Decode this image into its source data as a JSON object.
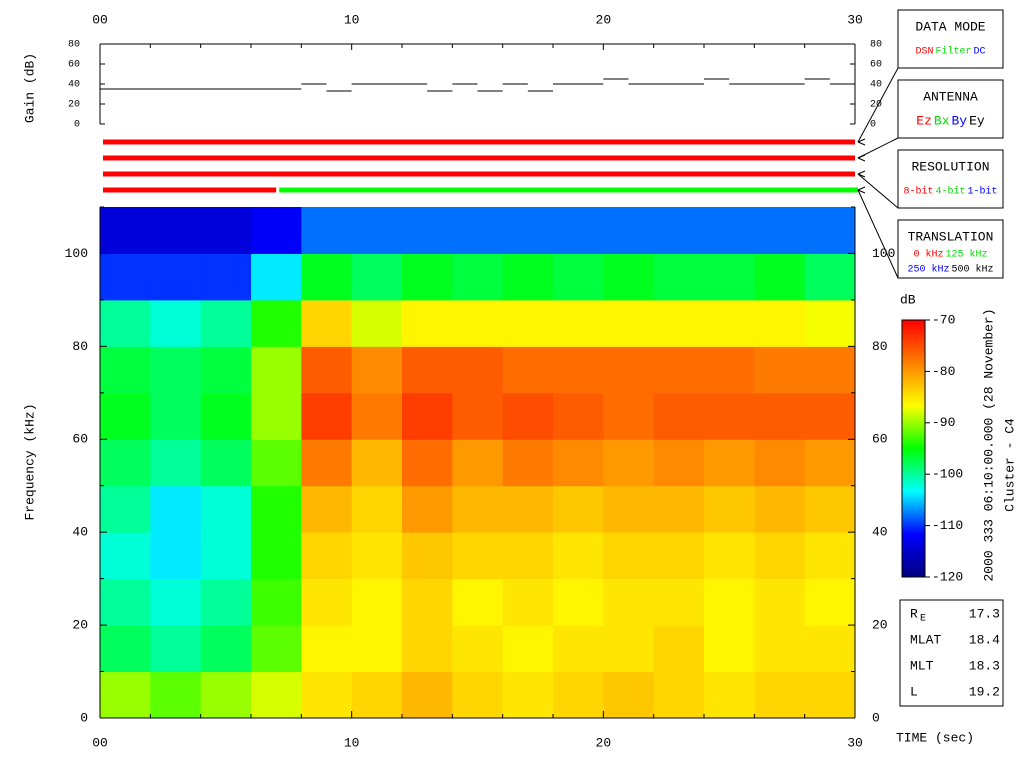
{
  "chart_data": [
    {
      "type": "step",
      "ylabel": "Gain (dB)",
      "color": "#000000",
      "xlim": [
        0,
        30
      ],
      "xticks": [
        {
          "value": 0,
          "label": "00"
        },
        10,
        20,
        30
      ],
      "xminorticks": [
        2,
        4,
        6,
        8,
        12,
        14,
        16,
        18,
        22,
        24,
        26,
        28
      ],
      "ylim": [
        0,
        80
      ],
      "yticks": [
        0,
        20,
        40,
        60,
        80
      ],
      "x": [
        0,
        8,
        9,
        10,
        13,
        14,
        15,
        16,
        17,
        18,
        20,
        21,
        24,
        25,
        28,
        29
      ],
      "values": [
        35,
        40,
        33,
        40,
        33,
        40,
        33,
        40,
        33,
        40,
        45,
        40,
        45,
        40,
        45,
        40
      ]
    },
    {
      "type": "heatmap",
      "ylabel": "Frequency (kHz)",
      "xlabel": "TIME (sec)",
      "xlim": [
        0,
        30
      ],
      "xticks": [
        {
          "value": 0,
          "label": "00"
        },
        10,
        20,
        30
      ],
      "xminorticks": [
        2,
        4,
        6,
        8,
        12,
        14,
        16,
        18,
        22,
        24,
        26,
        28
      ],
      "ylim": [
        0,
        110
      ],
      "yticks": [
        0,
        20,
        40,
        60,
        80,
        100
      ],
      "yminorticks": [
        10,
        30,
        50,
        70,
        90,
        110
      ],
      "xbins": [
        0,
        2,
        4,
        6,
        8,
        10,
        12,
        14,
        16,
        18,
        20,
        22,
        24,
        26,
        28,
        30
      ],
      "ybins": [
        0,
        10,
        20,
        30,
        40,
        50,
        60,
        70,
        80,
        90,
        100,
        110
      ],
      "z": [
        [
          -90,
          -92,
          -90,
          -88,
          -85,
          -84,
          -82,
          -84,
          -85,
          -84,
          -83,
          -84,
          -85,
          -84,
          -84
        ],
        [
          -98,
          -100,
          -98,
          -92,
          -86,
          -86,
          -84,
          -85,
          -86,
          -85,
          -85,
          -84,
          -86,
          -85,
          -85
        ],
        [
          -100,
          -102,
          -100,
          -93,
          -85,
          -86,
          -84,
          -86,
          -85,
          -86,
          -85,
          -85,
          -86,
          -85,
          -86
        ],
        [
          -102,
          -104,
          -102,
          -94,
          -84,
          -85,
          -83,
          -84,
          -84,
          -85,
          -84,
          -84,
          -85,
          -84,
          -85
        ],
        [
          -100,
          -104,
          -102,
          -94,
          -82,
          -84,
          -80,
          -82,
          -82,
          -83,
          -82,
          -82,
          -83,
          -82,
          -83
        ],
        [
          -98,
          -100,
          -98,
          -92,
          -78,
          -82,
          -77,
          -80,
          -78,
          -79,
          -80,
          -79,
          -80,
          -79,
          -80
        ],
        [
          -96,
          -98,
          -96,
          -90,
          -74,
          -78,
          -74,
          -76,
          -75,
          -76,
          -77,
          -76,
          -76,
          -76,
          -76
        ],
        [
          -97,
          -98,
          -97,
          -90,
          -76,
          -79,
          -76,
          -76,
          -77,
          -77,
          -77,
          -77,
          -77,
          -78,
          -78
        ],
        [
          -100,
          -102,
          -100,
          -94,
          -84,
          -88,
          -86,
          -86,
          -86,
          -86,
          -86,
          -86,
          -86,
          -86,
          -87
        ],
        [
          -110,
          -110,
          -110,
          -104,
          -96,
          -98,
          -96,
          -97,
          -96,
          -97,
          -96,
          -97,
          -97,
          -96,
          -98
        ],
        [
          -114,
          -114,
          -114,
          -112,
          -108,
          -108,
          -108,
          -108,
          -108,
          -108,
          -108,
          -108,
          -108,
          -108,
          -108
        ]
      ],
      "colorbar": {
        "label": "dB",
        "lim": [
          -120,
          -70
        ],
        "ticks": [
          -70,
          -80,
          -90,
          -100,
          -110,
          -120
        ],
        "colors": [
          "#000080",
          "#0000ff",
          "#00ffff",
          "#00ff00",
          "#ffff00",
          "#ff8000",
          "#ff0000"
        ]
      }
    }
  ],
  "status_bars": [
    {
      "segments": [
        {
          "start": 0,
          "end": 30,
          "color": "#ff0000"
        }
      ]
    },
    {
      "segments": [
        {
          "start": 0,
          "end": 30,
          "color": "#ff0000"
        }
      ]
    },
    {
      "segments": [
        {
          "start": 0,
          "end": 30,
          "color": "#ff0000"
        }
      ]
    },
    {
      "segments": [
        {
          "start": 0,
          "end": 7,
          "color": "#ff0000"
        },
        {
          "start": 7,
          "end": 30,
          "color": "#00ff00"
        }
      ]
    }
  ],
  "legends": [
    {
      "title": "DATA MODE",
      "rows": [
        [
          {
            "text": "DSN",
            "color": "#ff0000"
          },
          {
            "text": "Filter",
            "color": "#00dd00"
          },
          {
            "text": "DC",
            "color": "#0000ff"
          }
        ]
      ]
    },
    {
      "title": "ANTENNA",
      "rows": [
        [
          {
            "text": "Ez",
            "color": "#ff0000"
          },
          {
            "text": "Bx",
            "color": "#00dd00"
          },
          {
            "text": "By",
            "color": "#0000ff"
          },
          {
            "text": "Ey",
            "color": "#000000"
          }
        ]
      ]
    },
    {
      "title": "RESOLUTION",
      "rows": [
        [
          {
            "text": "8-bit",
            "color": "#ff0000"
          },
          {
            "text": "4-bit",
            "color": "#00dd00"
          },
          {
            "text": "1-bit",
            "color": "#0000ff"
          }
        ]
      ]
    },
    {
      "title": "TRANSLATION",
      "rows": [
        [
          {
            "text": "0 kHz",
            "color": "#ff0000"
          },
          {
            "text": "125 kHz",
            "color": "#00dd00"
          }
        ],
        [
          {
            "text": "250 kHz",
            "color": "#0000ff"
          },
          {
            "text": "500 kHz",
            "color": "#000000"
          }
        ]
      ]
    }
  ],
  "caption": [
    "2000 333 06:10:00.000 (28 November)",
    "Cluster - C4"
  ],
  "orbit": [
    {
      "label": "R",
      "sub": "E",
      "value": 17.3
    },
    {
      "label": "MLAT",
      "value": 18.4
    },
    {
      "label": "MLT",
      "value": 18.3
    },
    {
      "label": "L",
      "value": 19.2
    }
  ]
}
